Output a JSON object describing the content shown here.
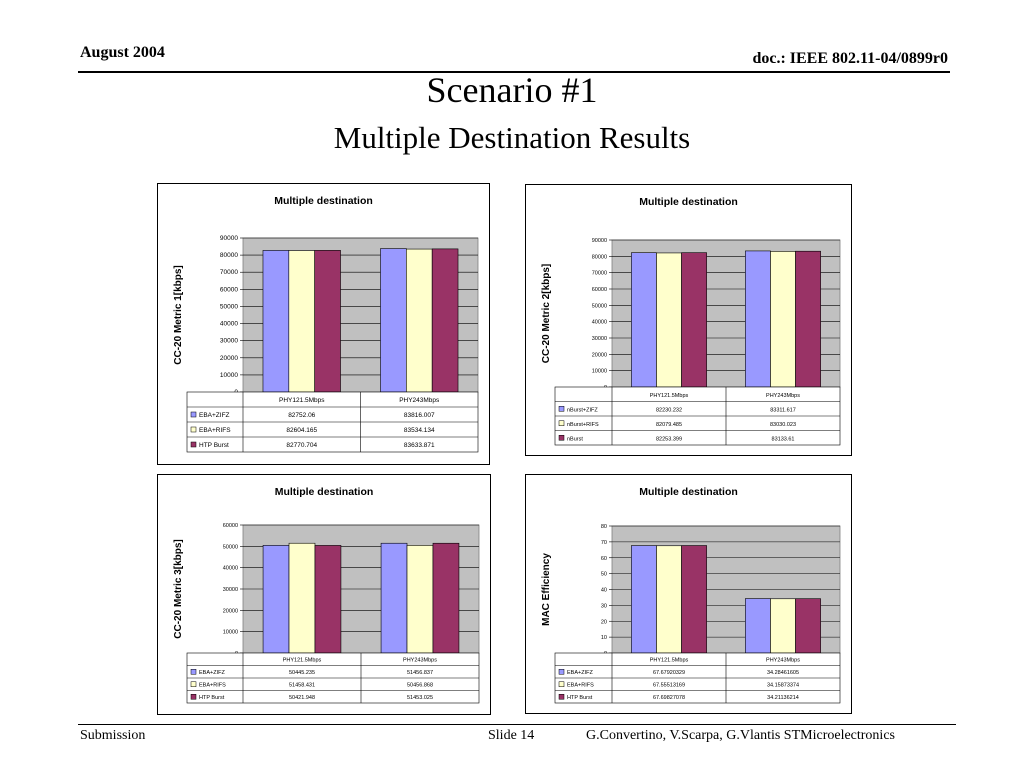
{
  "header": {
    "date": "August 2004",
    "doc": "doc.: IEEE 802.11-04/0899r0"
  },
  "title": "Scenario #1",
  "subtitle": "Multiple Destination Results",
  "footer": {
    "left": "Submission",
    "slide": "Slide 14",
    "authors": "G.Convertino, V.Scarpa, G.Vlantis  STMicroelectronics"
  },
  "colors": {
    "s1": "#9999ff",
    "s2": "#ffffcc",
    "s3": "#993366",
    "plot_bg": "#c0c0c0"
  },
  "chart_data": [
    {
      "type": "bar",
      "title": "Multiple destination",
      "ylabel": "CC-20 Metric 1[kbps]",
      "categories": [
        "PHY121.5Mbps",
        "PHY243Mbps"
      ],
      "ylim": [
        0,
        90000
      ],
      "ystep": 10000,
      "grid": true,
      "legend": "table",
      "series": [
        {
          "name": "EBA+ZIFZ",
          "values": [
            82752.06,
            83816.007
          ],
          "labels": [
            "82752.06",
            "83816.007"
          ]
        },
        {
          "name": "EBA+RIFS",
          "values": [
            82604.165,
            83534.134
          ],
          "labels": [
            "82604.165",
            "83534.134"
          ]
        },
        {
          "name": "HTP Burst",
          "values": [
            82770.704,
            83633.871
          ],
          "labels": [
            "82770.704",
            "83633.871"
          ]
        }
      ]
    },
    {
      "type": "bar",
      "title": "Multiple destination",
      "ylabel": "CC-20 Metric 2[kbps]",
      "categories": [
        "PHY121.5Mbps",
        "PHY243Mbps"
      ],
      "ylim": [
        0,
        90000
      ],
      "ystep": 10000,
      "grid": true,
      "legend": "table",
      "series": [
        {
          "name": "nBurst+ZIFZ",
          "values": [
            82230.232,
            83311.617
          ],
          "labels": [
            "82230.232",
            "83311.617"
          ]
        },
        {
          "name": "nBurst+RIFS",
          "values": [
            82079.485,
            83030.023
          ],
          "labels": [
            "82079.485",
            "83030.023"
          ]
        },
        {
          "name": "nBurst",
          "values": [
            82253.399,
            83133.61
          ],
          "labels": [
            "82253.399",
            "83133.61"
          ]
        }
      ]
    },
    {
      "type": "bar",
      "title": "Multiple destination",
      "ylabel": "CC-20 Metric 3[kbps]",
      "categories": [
        "PHY121.5Mbps",
        "PHY243Mbps"
      ],
      "ylim": [
        0,
        60000
      ],
      "ystep": 10000,
      "grid": true,
      "legend": "table",
      "series": [
        {
          "name": "EBA+ZIFZ",
          "values": [
            50445.235,
            51456.837
          ],
          "labels": [
            "50445.235",
            "51456.837"
          ]
        },
        {
          "name": "EBA+RIFS",
          "values": [
            51458.431,
            50456.868
          ],
          "labels": [
            "51458.431",
            "50456.868"
          ]
        },
        {
          "name": "HTP Burst",
          "values": [
            50421.948,
            51453.025
          ],
          "labels": [
            "50421.948",
            "51453.025"
          ]
        }
      ]
    },
    {
      "type": "bar",
      "title": "Multiple destination",
      "ylabel": "MAC Efficiency",
      "categories": [
        "PHY121.5Mbps",
        "PHY243Mbps"
      ],
      "ylim": [
        0,
        80
      ],
      "ystep": 10,
      "grid": true,
      "legend": "table",
      "series": [
        {
          "name": "EBA+ZIFZ",
          "values": [
            67.67920329,
            34.28461605
          ],
          "labels": [
            "67.67920329",
            "34.28461605"
          ]
        },
        {
          "name": "EBA+RIFS",
          "values": [
            67.55513169,
            34.15873374
          ],
          "labels": [
            "67.55513169",
            "34.15873374"
          ]
        },
        {
          "name": "HTP Burst",
          "values": [
            67.69827078,
            34.21136214
          ],
          "labels": [
            "67.69827078",
            "34.21136214"
          ]
        }
      ]
    }
  ]
}
